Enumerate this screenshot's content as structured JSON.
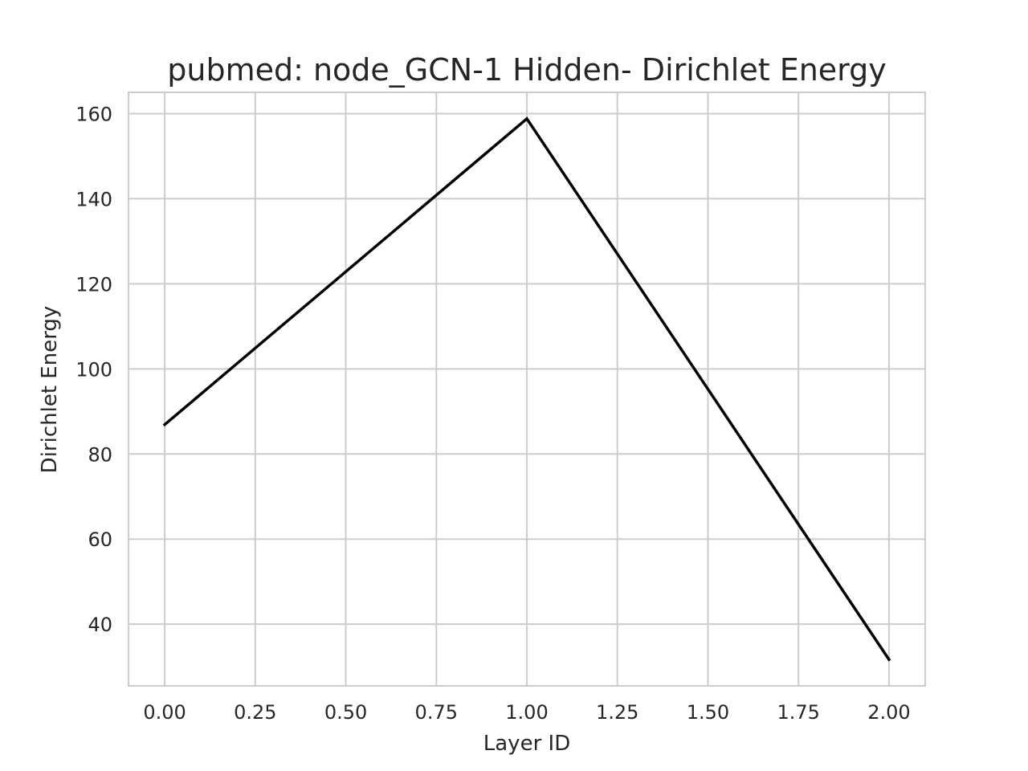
{
  "chart_data": {
    "type": "line",
    "title": "pubmed: node_GCN-1 Hidden- Dirichlet Energy",
    "xlabel": "Layer ID",
    "ylabel": "Dirichlet Energy",
    "xlim": [
      -0.1,
      2.1
    ],
    "ylim": [
      25.5,
      165.0
    ],
    "x_ticks": [
      0.0,
      0.25,
      0.5,
      0.75,
      1.0,
      1.25,
      1.5,
      1.75,
      2.0
    ],
    "x_tick_labels": [
      "0.00",
      "0.25",
      "0.50",
      "0.75",
      "1.00",
      "1.25",
      "1.50",
      "1.75",
      "2.00"
    ],
    "y_ticks": [
      40,
      60,
      80,
      100,
      120,
      140,
      160
    ],
    "y_tick_labels": [
      "40",
      "60",
      "80",
      "100",
      "120",
      "140",
      "160"
    ],
    "grid": true,
    "series": [
      {
        "x": [
          0,
          1,
          2
        ],
        "values": [
          86.9,
          158.8,
          31.7
        ],
        "color": "#000000"
      }
    ]
  }
}
